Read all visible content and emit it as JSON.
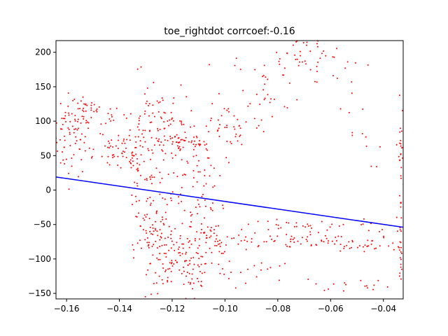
{
  "chart_data": {
    "type": "scatter",
    "title": "toe_rightdot corrcoef:-0.16",
    "xlabel": "",
    "ylabel": "",
    "xlim": [
      -0.164,
      -0.0325
    ],
    "ylim": [
      -158,
      217
    ],
    "xticks": [
      -0.16,
      -0.14,
      -0.12,
      -0.1,
      -0.08,
      -0.06,
      -0.04
    ],
    "xtick_labels": [
      "−0.16",
      "−0.14",
      "−0.12",
      "−0.10",
      "−0.08",
      "−0.06",
      "−0.04"
    ],
    "yticks": [
      -150,
      -100,
      -50,
      0,
      50,
      100,
      150,
      200
    ],
    "ytick_labels": [
      "−150",
      "−100",
      "−50",
      "0",
      "50",
      "100",
      "150",
      "200"
    ],
    "grid": false,
    "colors": {
      "points": "#ff0000",
      "fit_line": "#0000ff",
      "axes": "#000000"
    },
    "series": [
      {
        "kind": "scatter",
        "color": "#ff0000",
        "clusters": [
          {
            "xc": -0.158,
            "yc": 80,
            "sx": 0.0035,
            "sy": 30,
            "n": 70
          },
          {
            "xc": -0.15,
            "yc": 110,
            "sx": 0.006,
            "sy": 10,
            "n": 40
          },
          {
            "xc": -0.145,
            "yc": 65,
            "sx": 0.006,
            "sy": 15,
            "n": 40
          },
          {
            "xc": -0.135,
            "yc": 45,
            "sx": 0.004,
            "sy": 10,
            "n": 25
          },
          {
            "xc": -0.133,
            "yc": 40,
            "sx": 0.0015,
            "sy": 60,
            "n": 40
          },
          {
            "xc": -0.128,
            "yc": -20,
            "sx": 0.002,
            "sy": 45,
            "n": 40
          },
          {
            "xc": -0.125,
            "yc": -70,
            "sx": 0.005,
            "sy": 25,
            "n": 60
          },
          {
            "xc": -0.12,
            "yc": -105,
            "sx": 0.004,
            "sy": 25,
            "n": 50
          },
          {
            "xc": -0.112,
            "yc": -125,
            "sx": 0.003,
            "sy": 22,
            "n": 40
          },
          {
            "xc": -0.128,
            "yc": 95,
            "sx": 0.003,
            "sy": 25,
            "n": 35
          },
          {
            "xc": -0.12,
            "yc": 95,
            "sx": 0.003,
            "sy": 30,
            "n": 35
          },
          {
            "xc": -0.117,
            "yc": 40,
            "sx": 0.004,
            "sy": 40,
            "n": 40
          },
          {
            "xc": -0.108,
            "yc": 20,
            "sx": 0.003,
            "sy": 25,
            "n": 30
          },
          {
            "xc": -0.11,
            "yc": -40,
            "sx": 0.004,
            "sy": 30,
            "n": 30
          },
          {
            "xc": -0.104,
            "yc": -85,
            "sx": 0.003,
            "sy": 20,
            "n": 30
          },
          {
            "xc": -0.115,
            "yc": 70,
            "sx": 0.01,
            "sy": 6,
            "n": 40
          },
          {
            "xc": -0.098,
            "yc": 90,
            "sx": 0.008,
            "sy": 15,
            "n": 40
          },
          {
            "xc": -0.085,
            "yc": 155,
            "sx": 0.008,
            "sy": 25,
            "n": 40
          },
          {
            "xc": -0.072,
            "yc": 200,
            "sx": 0.007,
            "sy": 15,
            "n": 35
          },
          {
            "xc": -0.06,
            "yc": 170,
            "sx": 0.006,
            "sy": 30,
            "n": 15
          },
          {
            "xc": -0.05,
            "yc": 80,
            "sx": 0.005,
            "sy": 25,
            "n": 10
          },
          {
            "xc": -0.086,
            "yc": -73,
            "sx": 0.013,
            "sy": 6,
            "n": 55
          },
          {
            "xc": -0.05,
            "yc": -80,
            "sx": 0.012,
            "sy": 6,
            "n": 45
          },
          {
            "xc": -0.065,
            "yc": -52,
            "sx": 0.018,
            "sy": 6,
            "n": 40
          },
          {
            "xc": -0.09,
            "yc": -120,
            "sx": 0.01,
            "sy": 10,
            "n": 20
          },
          {
            "xc": -0.05,
            "yc": -138,
            "sx": 0.008,
            "sy": 4,
            "n": 15
          },
          {
            "xc": -0.0335,
            "yc": 50,
            "sx": 0.0005,
            "sy": 40,
            "n": 25
          },
          {
            "xc": -0.0335,
            "yc": -80,
            "sx": 0.0005,
            "sy": 40,
            "n": 25
          }
        ]
      },
      {
        "kind": "line",
        "color": "#0000ff",
        "x": [
          -0.164,
          -0.0325
        ],
        "y": [
          19,
          -54
        ]
      }
    ]
  }
}
